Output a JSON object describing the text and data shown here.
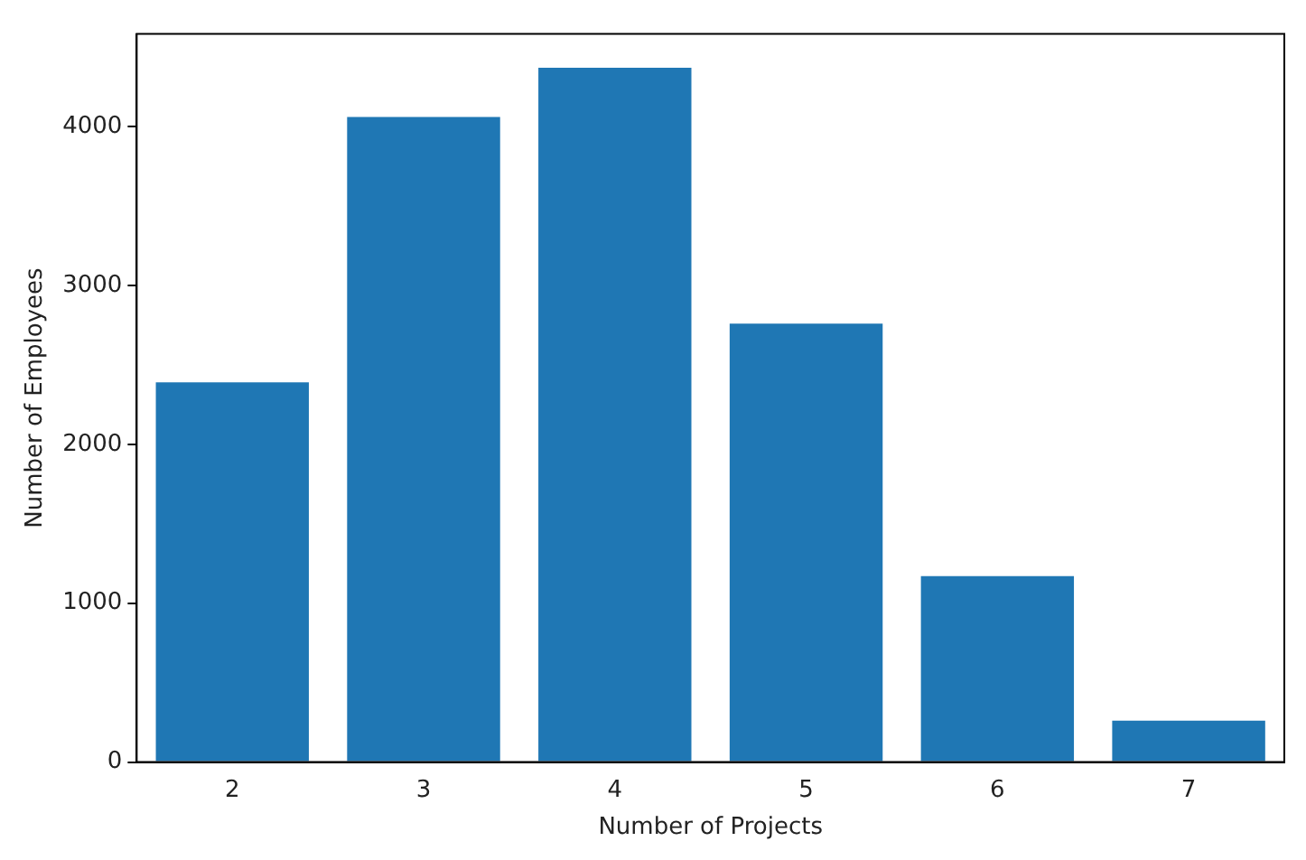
{
  "chart_data": {
    "type": "bar",
    "xlabel": "Number of Projects",
    "ylabel": "Number of Employees",
    "categories": [
      "2",
      "3",
      "4",
      "5",
      "6",
      "7"
    ],
    "values": [
      2390,
      4060,
      4370,
      2760,
      1170,
      260
    ],
    "color": "#1f77b4",
    "ylim": [
      0,
      4583
    ],
    "yticks": [
      0,
      1000,
      2000,
      3000,
      4000
    ],
    "grid": false,
    "legend": false
  }
}
